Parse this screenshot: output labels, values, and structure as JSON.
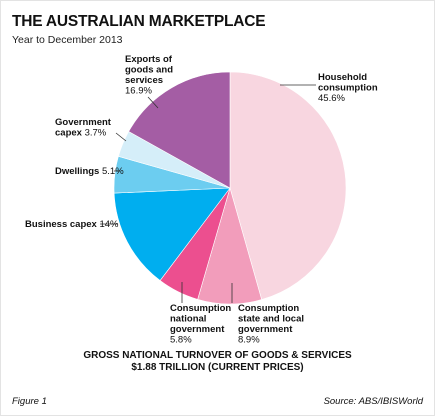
{
  "header": {
    "title": "THE AUSTRALIAN MARKETPLACE",
    "subtitle": "Year to December 2013"
  },
  "caption": {
    "line1": "GROSS NATIONAL TURNOVER OF GOODS & SERVICES",
    "line2": "$1.88 TRILLION (CURRENT PRICES)"
  },
  "footer": {
    "figure": "Figure 1",
    "source": "Source: ABS/IBISWorld"
  },
  "chart_data": {
    "type": "pie",
    "title": "THE AUSTRALIAN MARKETPLACE",
    "subtitle": "Year to December 2013",
    "slices": [
      {
        "label": "Household consumption",
        "value": 45.6,
        "value_text": "45.6%",
        "color": "#f8d6e0"
      },
      {
        "label": "Consumption state and local government",
        "value": 8.9,
        "value_text": "8.9%",
        "color": "#f29dbb"
      },
      {
        "label": "Consumption national government",
        "value": 5.8,
        "value_text": "5.8%",
        "color": "#ec4f8f"
      },
      {
        "label": "Business capex",
        "value": 14,
        "value_text": "14%",
        "color": "#00aeef"
      },
      {
        "label": "Dwellings",
        "value": 5.1,
        "value_text": "5.1%",
        "color": "#6ccdf0"
      },
      {
        "label": "Government capex",
        "value": 3.7,
        "value_text": "3.7%",
        "color": "#d5eef9"
      },
      {
        "label": "Exports of goods and services",
        "value": 16.9,
        "value_text": "16.9%",
        "color": "#a45da4"
      }
    ]
  }
}
